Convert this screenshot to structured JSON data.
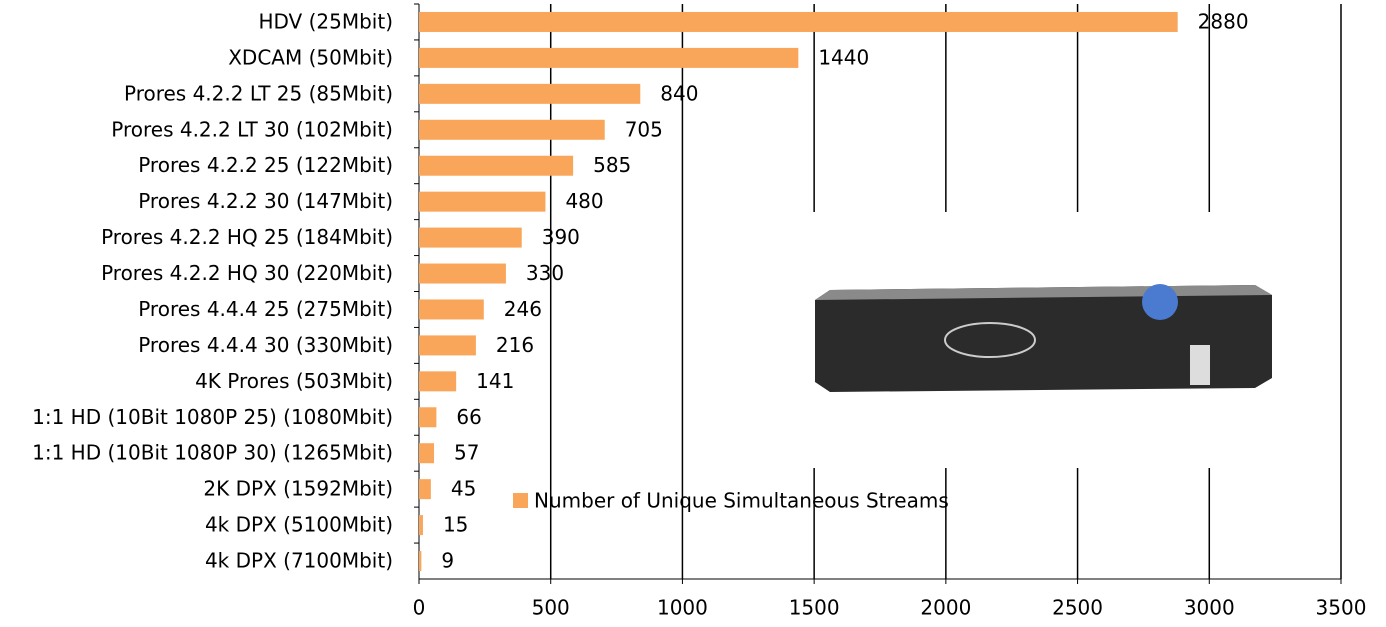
{
  "chart_data": {
    "type": "bar",
    "orientation": "horizontal",
    "categories": [
      "HDV (25Mbit)",
      "XDCAM (50Mbit)",
      "Prores 4.2.2 LT 25 (85Mbit)",
      "Prores 4.2.2 LT 30 (102Mbit)",
      "Prores 4.2.2 25 (122Mbit)",
      "Prores 4.2.2 30 (147Mbit)",
      "Prores 4.2.2 HQ 25 (184Mbit)",
      "Prores 4.2.2 HQ 30 (220Mbit)",
      "Prores 4.4.4 25 (275Mbit)",
      "Prores 4.4.4 30 (330Mbit)",
      "4K Prores (503Mbit)",
      "1:1 HD (10Bit 1080P 25) (1080Mbit)",
      "1:1 HD (10Bit 1080P 30) (1265Mbit)",
      "2K DPX (1592Mbit)",
      "4k DPX (5100Mbit)",
      "4k DPX (7100Mbit)"
    ],
    "series": [
      {
        "name": "Number of Unique Simultaneous Streams",
        "color": "#f9a65a",
        "values": [
          2880,
          1440,
          840,
          705,
          585,
          480,
          390,
          330,
          246,
          216,
          141,
          66,
          57,
          45,
          15,
          9
        ]
      }
    ],
    "xlim": [
      0,
      3500
    ],
    "xticks": [
      0,
      500,
      1000,
      1500,
      2000,
      2500,
      3000,
      3500
    ],
    "grid": true
  }
}
